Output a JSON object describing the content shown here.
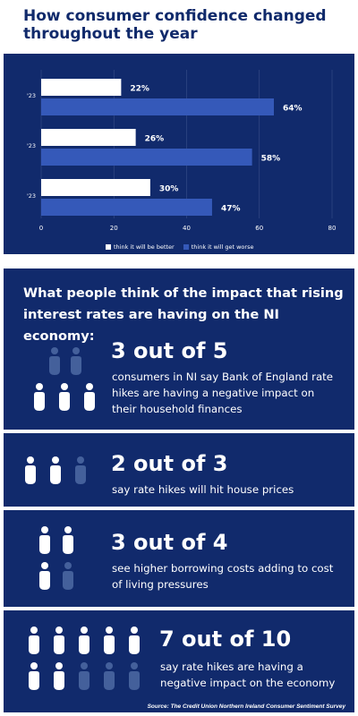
{
  "title": "How consumer confidence changed throughout the year",
  "colors": {
    "navy": "#112a6c",
    "title_navy": "#102a6b",
    "bar_white": "#ffffff",
    "bar_blue": "#3559b9",
    "person_full": "#ffffff",
    "person_faded": "#44609b"
  },
  "chart_data": {
    "type": "bar",
    "orientation": "horizontal",
    "categories": [
      "'23",
      "'23",
      "'23"
    ],
    "series": [
      {
        "name": "think it will be better",
        "values": [
          22,
          26,
          30
        ]
      },
      {
        "name": "think it will get worse",
        "values": [
          64,
          58,
          47
        ]
      }
    ],
    "data_labels": [
      [
        "22%",
        "26%",
        "30%"
      ],
      [
        "64%",
        "58%",
        "47%"
      ]
    ],
    "xlim": [
      0,
      80
    ],
    "xticks": [
      "0",
      "20",
      "40",
      "60",
      "80"
    ],
    "grid": true,
    "legend": "bottom"
  },
  "impact": {
    "heading": "What people think of the impact that rising interest rates are having on the NI economy:"
  },
  "stats": [
    {
      "big": "3 out of 5",
      "text": "consumers in NI say Bank of England rate hikes are having a negative impact on their household finances",
      "total": 5,
      "filled": 3,
      "icon": "person-icon"
    },
    {
      "big": "2 out of 3",
      "text": "say rate hikes will hit house prices",
      "total": 3,
      "filled": 2,
      "icon": "person-icon"
    },
    {
      "big": "3 out of 4",
      "text": "see higher borrowing costs adding to cost of living pressures",
      "total": 4,
      "filled": 3,
      "icon": "person-icon"
    },
    {
      "big": "7 out of 10",
      "text": "say rate hikes are having a negative impact on the economy",
      "total": 10,
      "filled": 7,
      "icon": "person-icon"
    }
  ],
  "source": "Source: The Credit Union Northern Ireland Consumer Sentiment Survey"
}
